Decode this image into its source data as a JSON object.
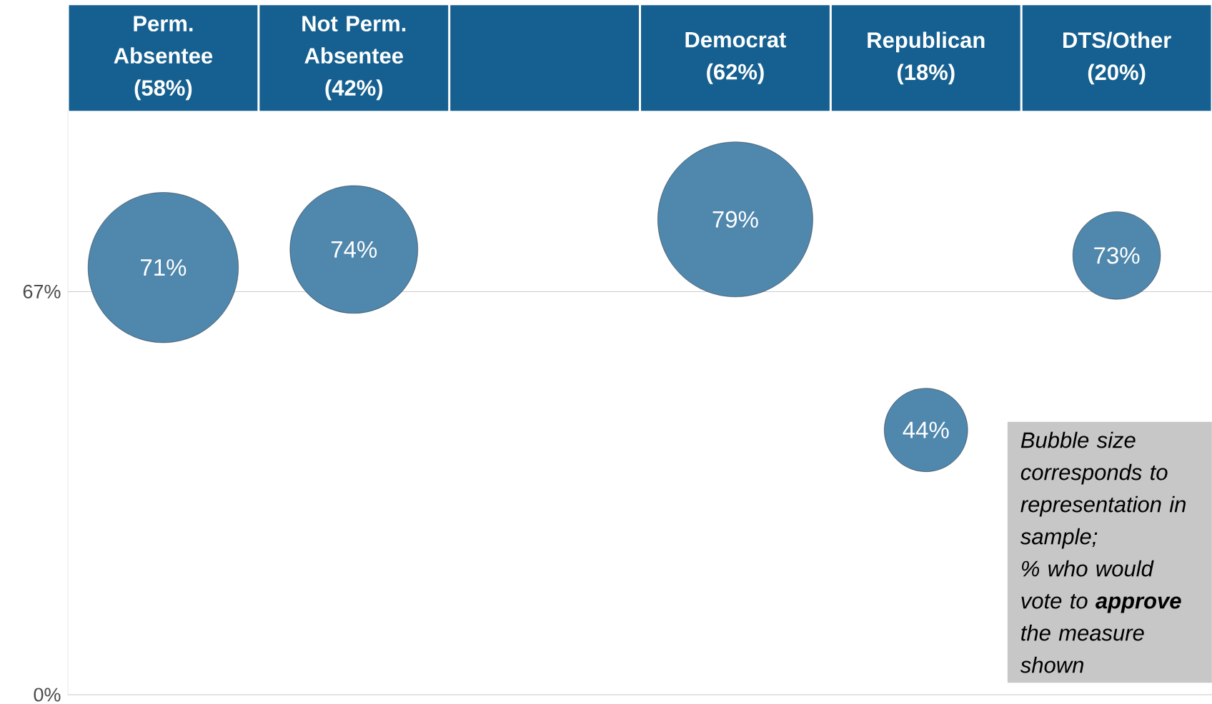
{
  "chart_data": {
    "type": "bubble",
    "categories": [
      "Perm. Absentee (58%)",
      "Not Perm. Absentee (42%)",
      null,
      "Democrat (62%)",
      "Republican (18%)",
      "DTS/Other (20%)"
    ],
    "values": [
      71,
      74,
      null,
      79,
      44,
      73
    ],
    "sizes": [
      0.94,
      0.68,
      null,
      1,
      0.29,
      0.32
    ],
    "value_labels": [
      "71%",
      "74%",
      null,
      "79%",
      "44%",
      "73%"
    ],
    "color": "#4f87ad",
    "ylim": [
      0,
      97
    ],
    "yticks": [
      {
        "value": 0,
        "label": "0%"
      },
      {
        "value": 67,
        "label": "67%"
      }
    ],
    "grid": "y",
    "annotations": [
      "Bubble size corresponds to representation in sample;",
      "% who would vote to **approve** the measure shown"
    ]
  }
}
